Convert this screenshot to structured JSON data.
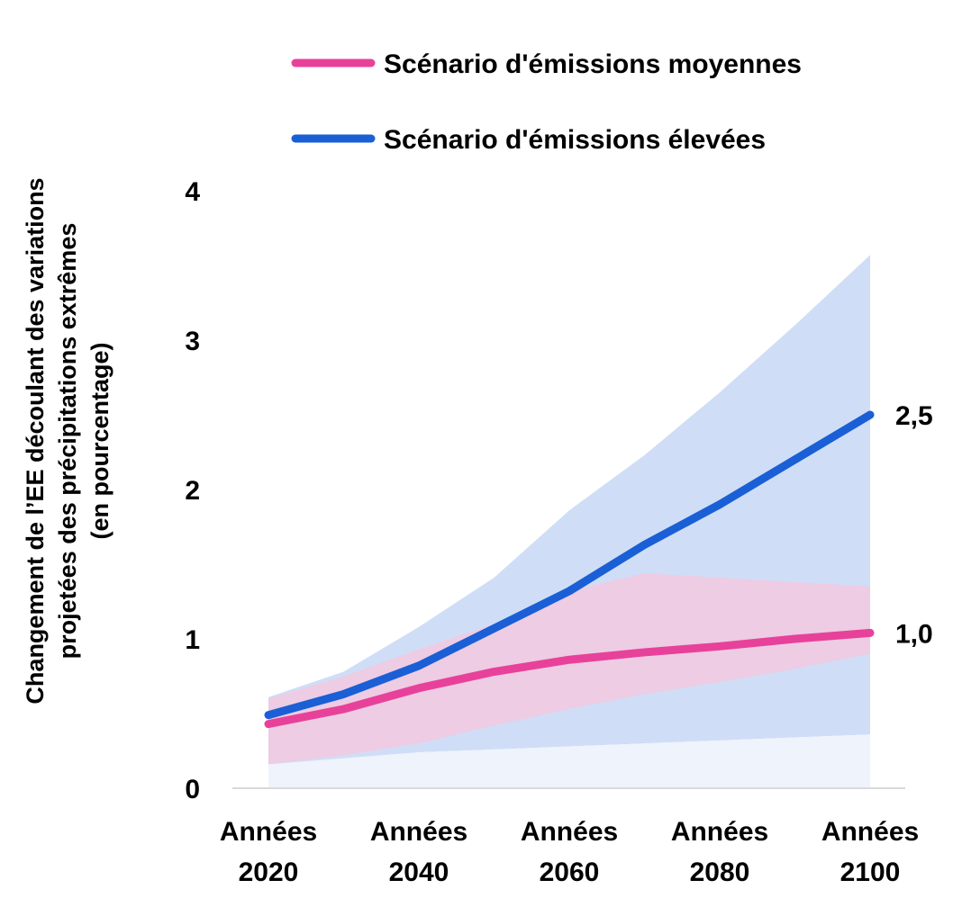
{
  "chart_data": {
    "type": "line",
    "title": "",
    "ylabel_lines": [
      "Changement de l’EE découlant des variations",
      "projetées des précipitations extrêmes",
      "(en pourcentage)"
    ],
    "xlabel": "",
    "x": [
      2020,
      2030,
      2040,
      2050,
      2060,
      2070,
      2080,
      2090,
      2100
    ],
    "x_ticks": [
      {
        "x": 2020,
        "line1": "Années",
        "line2": "2020"
      },
      {
        "x": 2040,
        "line1": "Années",
        "line2": "2040"
      },
      {
        "x": 2060,
        "line1": "Années",
        "line2": "2060"
      },
      {
        "x": 2080,
        "line1": "Années",
        "line2": "2080"
      },
      {
        "x": 2100,
        "line1": "Années",
        "line2": "2100"
      }
    ],
    "y_ticks": [
      0,
      1,
      2,
      3,
      4
    ],
    "xlim": [
      2020,
      2100
    ],
    "ylim": [
      0,
      4
    ],
    "grid": false,
    "legend_position": "top",
    "series": [
      {
        "name": "Scénario d'émissions moyennes",
        "color": "#E8419A",
        "band_color": "#F7C6DD",
        "values": [
          0.43,
          0.53,
          0.67,
          0.78,
          0.86,
          0.91,
          0.95,
          1.0,
          1.04
        ],
        "lower": [
          0.16,
          0.22,
          0.3,
          0.42,
          0.53,
          0.63,
          0.71,
          0.8,
          0.9
        ],
        "upper": [
          0.6,
          0.75,
          0.93,
          1.1,
          1.32,
          1.44,
          1.41,
          1.38,
          1.35
        ],
        "end_label": "1,0"
      },
      {
        "name": "Scénario d'émissions élevées",
        "color": "#1A5FD6",
        "band_color": "#CCDCF5",
        "values": [
          0.49,
          0.63,
          0.82,
          1.07,
          1.32,
          1.63,
          1.9,
          2.2,
          2.5
        ],
        "lower": [
          0.16,
          0.2,
          0.24,
          0.26,
          0.28,
          0.3,
          0.32,
          0.34,
          0.36
        ],
        "upper": [
          0.61,
          0.78,
          1.08,
          1.41,
          1.86,
          2.23,
          2.65,
          3.1,
          3.57
        ],
        "end_label": "2,5"
      }
    ]
  }
}
